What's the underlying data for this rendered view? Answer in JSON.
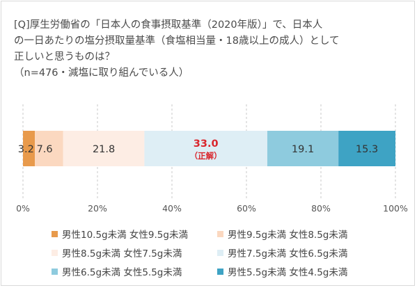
{
  "question": "[Q]厚生労働省の「日本人の食事摂取基準（2020年版）」で、日本人\nの一日あたりの塩分摂取量基準（食塩相当量・18歳以上の成人）として\n正しいと思うものは？\n（n=476・減塩に取り組んでいる人）",
  "chart_data": {
    "type": "bar",
    "orientation": "horizontal",
    "stacked": true,
    "percent_scale": true,
    "xlim": [
      0,
      100
    ],
    "ticks": [
      "0%",
      "20%",
      "40%",
      "60%",
      "80%",
      "100%"
    ],
    "grid": true,
    "legend_position": "bottom",
    "series": [
      {
        "name": "男性10.5g未満 女性9.5g未満",
        "value": 3.2,
        "label": "3.2",
        "color": "#e89a4c",
        "label_color": "#333333"
      },
      {
        "name": "男性9.5g未満 女性8.5g未満",
        "value": 7.6,
        "label": "7.6",
        "color": "#fbd8c0",
        "label_color": "#333333"
      },
      {
        "name": "男性8.5g未満 女性7.5g未満",
        "value": 21.8,
        "label": "21.8",
        "color": "#fdede4",
        "label_color": "#333333"
      },
      {
        "name": "男性7.5g未満 女性6.5g未満",
        "value": 33.0,
        "label": "33.0",
        "sublabel": "（正解）",
        "color": "#deeef5",
        "label_color": "#d9252c"
      },
      {
        "name": "男性6.5g未満 女性5.5g未満",
        "value": 19.1,
        "label": "19.1",
        "color": "#8ecbde",
        "label_color": "#333333"
      },
      {
        "name": "男性5.5g未満 女性4.5g未満",
        "value": 15.3,
        "label": "15.3",
        "color": "#3ea3c4",
        "label_color": "#333333"
      }
    ]
  }
}
